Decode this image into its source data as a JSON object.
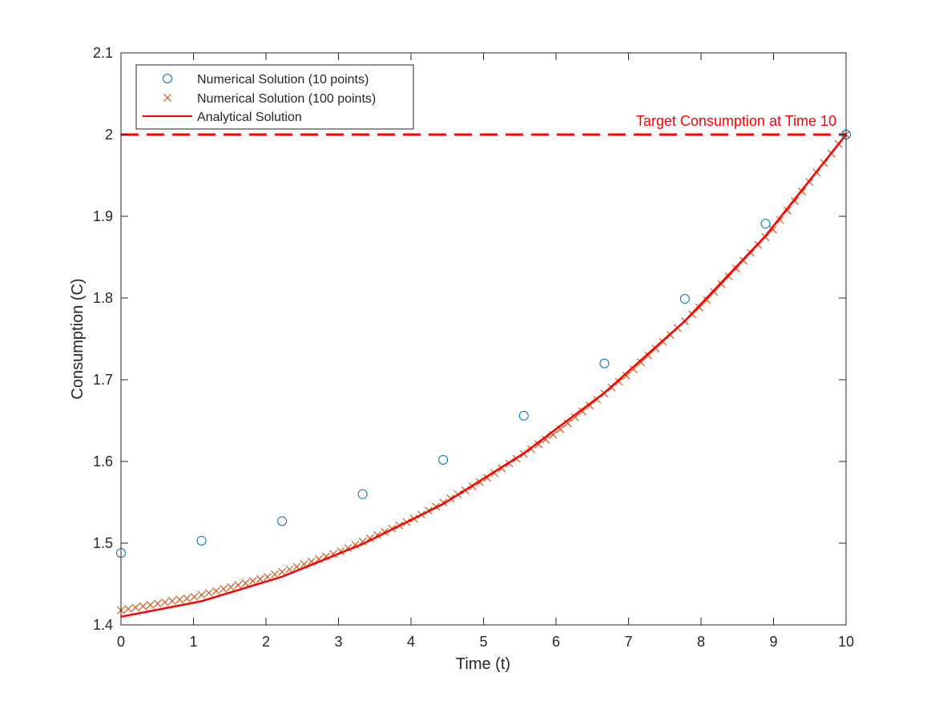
{
  "chart_data": {
    "type": "line",
    "title": "",
    "xlabel": "Time (t)",
    "ylabel": "Consumption (C)",
    "xlim": [
      0,
      10
    ],
    "ylim": [
      1.4,
      2.1
    ],
    "xticks": [
      0,
      1,
      2,
      3,
      4,
      5,
      6,
      7,
      8,
      9,
      10
    ],
    "yticks": [
      1.4,
      1.5,
      1.6,
      1.7,
      1.8,
      1.9,
      2,
      2.1
    ],
    "ytick_labels": [
      "1.4",
      "1.5",
      "1.6",
      "1.7",
      "1.8",
      "1.9",
      "2",
      "2.1"
    ],
    "grid": false,
    "legend_position": "top-left",
    "series": [
      {
        "name": "Numerical Solution (10 points)",
        "marker": "circle",
        "color": "#0072BD",
        "x": [
          0,
          1.111,
          2.222,
          3.333,
          4.444,
          5.556,
          6.667,
          7.778,
          8.889,
          10
        ],
        "y": [
          1.488,
          1.503,
          1.527,
          1.56,
          1.602,
          1.656,
          1.72,
          1.799,
          1.891,
          2.0
        ]
      },
      {
        "name": "Numerical Solution (100 points)",
        "marker": "x",
        "color": "#D95319",
        "x_start": 0,
        "x_end": 10,
        "count": 100,
        "y_anchor_x": [
          0,
          1,
          2,
          3,
          4,
          5,
          6,
          7,
          8,
          9,
          10
        ],
        "y_anchor_y": [
          1.418,
          1.434,
          1.458,
          1.489,
          1.528,
          1.577,
          1.635,
          1.707,
          1.79,
          1.885,
          2.0
        ]
      },
      {
        "name": "Analytical Solution",
        "marker": "line",
        "color": "#FF0000",
        "x": [
          0,
          1.111,
          2.222,
          3.333,
          4.444,
          5.556,
          6.667,
          7.778,
          8.889,
          10
        ],
        "y": [
          1.41,
          1.429,
          1.459,
          1.499,
          1.548,
          1.61,
          1.684,
          1.772,
          1.876,
          2.0
        ]
      }
    ],
    "reference_line": {
      "y": 2,
      "style": "dashed",
      "color": "#FF0000",
      "label": "Target Consumption at Time 10"
    }
  }
}
